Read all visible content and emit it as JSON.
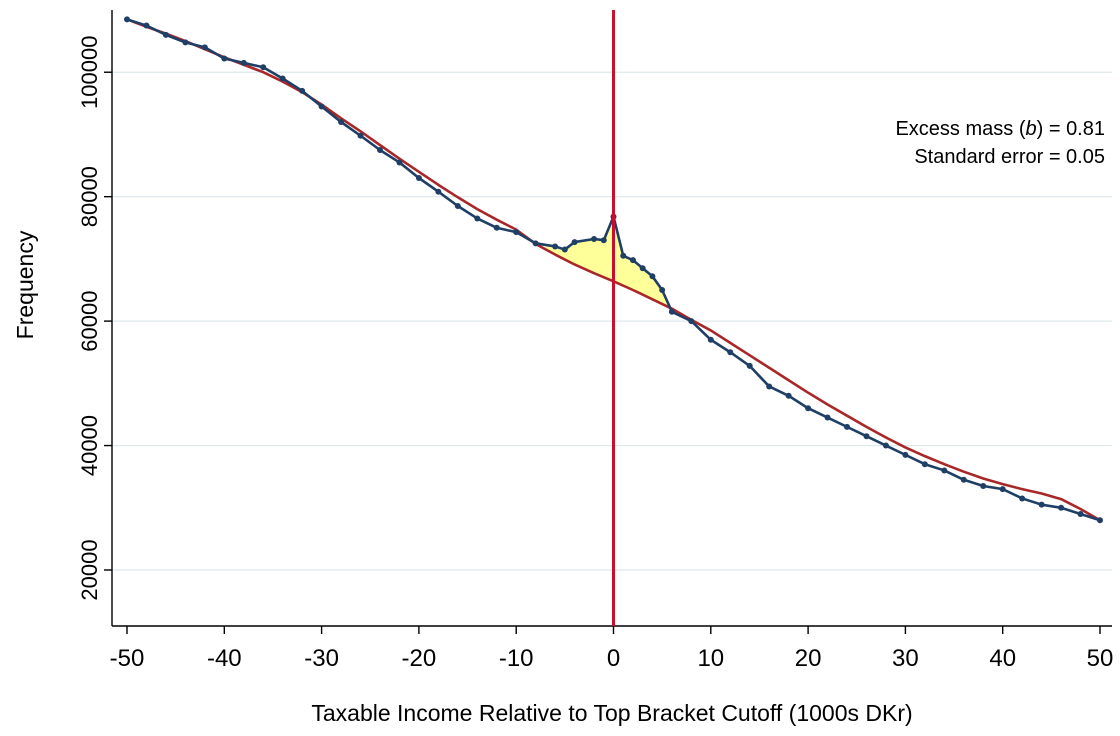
{
  "chart_data": {
    "type": "line",
    "xlabel": "Taxable Income Relative to Top Bracket Cutoff (1000s DKr)",
    "ylabel": "Frequency",
    "xlim": [
      -50,
      50
    ],
    "ylim": [
      11000,
      110000
    ],
    "xticks": [
      -50,
      -40,
      -30,
      -20,
      -10,
      0,
      10,
      20,
      30,
      40,
      50
    ],
    "xtick_labels": [
      "-50",
      "-40",
      "-30",
      "-20",
      "-10",
      "0",
      "10",
      "20",
      "30",
      "40",
      "50"
    ],
    "yticks": [
      20000,
      40000,
      60000,
      80000,
      100000
    ],
    "ytick_labels": [
      "20000",
      "40000",
      "60000",
      "80000",
      "100000"
    ],
    "grid": "horizontal",
    "cutoff_x": 0,
    "annotation": {
      "excess_prefix": "Excess mass (",
      "excess_var": "b",
      "excess_suffix": ") = 0.81",
      "stderr": "Standard error = 0.05"
    },
    "colors": {
      "observed": "#1f3f66",
      "counterfactual": "#a8282a",
      "cutoff": "#c8102e",
      "excess_fill": "#ffff99",
      "grid": "#dde8ec"
    },
    "series": [
      {
        "role": "observed",
        "x": [
          -50,
          -48,
          -46,
          -44,
          -42,
          -40,
          -38,
          -36,
          -34,
          -32,
          -30,
          -28,
          -26,
          -24,
          -22,
          -20,
          -18,
          -16,
          -14,
          -12,
          -10,
          -8,
          -6,
          -5,
          -4,
          -2,
          -1,
          0,
          1,
          2,
          3,
          4,
          5,
          6,
          8,
          10,
          12,
          14,
          16,
          18,
          20,
          22,
          24,
          26,
          28,
          30,
          32,
          34,
          36,
          38,
          40,
          42,
          44,
          46,
          48,
          50
        ],
        "y": [
          108500,
          107500,
          106000,
          104800,
          104000,
          102200,
          101500,
          100800,
          99000,
          97000,
          94500,
          92000,
          89800,
          87500,
          85500,
          83000,
          80800,
          78500,
          76500,
          75000,
          74300,
          72500,
          72000,
          71500,
          72700,
          73200,
          73000,
          76800,
          70500,
          69800,
          68500,
          67200,
          65000,
          61500,
          60000,
          57000,
          55000,
          52800,
          49500,
          48000,
          46000,
          44500,
          43000,
          41500,
          40000,
          38500,
          37000,
          36000,
          34500,
          33500,
          33000,
          31500,
          30500,
          30000,
          29000,
          28000
        ]
      },
      {
        "role": "counterfactual",
        "x": [
          -50,
          -48,
          -46,
          -44,
          -42,
          -40,
          -38,
          -36,
          -34,
          -32,
          -30,
          -28,
          -26,
          -24,
          -22,
          -20,
          -18,
          -16,
          -14,
          -12,
          -10,
          -8,
          -6,
          -4,
          -2,
          0,
          2,
          4,
          6,
          8,
          10,
          12,
          14,
          16,
          18,
          20,
          22,
          24,
          26,
          28,
          30,
          32,
          34,
          36,
          38,
          40,
          42,
          44,
          46,
          48,
          50
        ],
        "y": [
          108500,
          107300,
          106200,
          105000,
          103700,
          102400,
          101200,
          100000,
          98500,
          96800,
          94800,
          92600,
          90500,
          88300,
          86100,
          84000,
          81900,
          79900,
          78000,
          76300,
          74700,
          72400,
          70700,
          69100,
          67700,
          66400,
          65000,
          63500,
          62000,
          60200,
          58500,
          56500,
          54500,
          52500,
          50500,
          48500,
          46600,
          44800,
          43000,
          41300,
          39700,
          38300,
          37000,
          35800,
          34700,
          33800,
          33000,
          32300,
          31400,
          29800,
          28000
        ]
      }
    ]
  }
}
